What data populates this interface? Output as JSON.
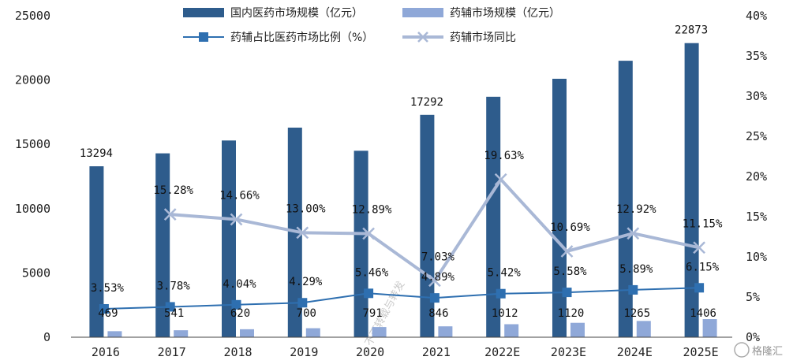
{
  "chart_data": {
    "type": "bar",
    "categories": [
      "2016",
      "2017",
      "2018",
      "2019",
      "2020",
      "2021",
      "2022E",
      "2023E",
      "2024E",
      "2025E"
    ],
    "y_left_lim": [
      0,
      25000
    ],
    "y_left_ticks": [
      "0",
      "5000",
      "10000",
      "15000",
      "20000",
      "25000"
    ],
    "y_right_lim": [
      0,
      40
    ],
    "y_right_ticks": [
      "0%",
      "5%",
      "10%",
      "15%",
      "20%",
      "25%",
      "30%",
      "35%",
      "40%"
    ],
    "grid": false,
    "legend_position": "top",
    "series": [
      {
        "name": "国内医药市场规模（亿元）",
        "type": "bar",
        "axis": "left",
        "color": "#2e5c8c",
        "values": [
          13294,
          14300,
          15300,
          16300,
          14500,
          17292,
          18700,
          20100,
          21500,
          22873
        ],
        "labels": [
          "13294",
          "",
          "",
          "",
          "",
          "17292",
          "",
          "",
          "",
          "22873"
        ]
      },
      {
        "name": "药辅市场规模（亿元）",
        "type": "bar",
        "axis": "left",
        "color": "#8fa8d8",
        "values": [
          469,
          541,
          620,
          700,
          791,
          846,
          1012,
          1120,
          1265,
          1406
        ],
        "labels": [
          "469",
          "541",
          "620",
          "700",
          "791",
          "846",
          "1012",
          "1120",
          "1265",
          "1406"
        ]
      },
      {
        "name": "药辅占比医药市场比例（%）",
        "type": "line",
        "axis": "right",
        "color": "#2e6fb0",
        "values": [
          3.53,
          3.78,
          4.04,
          4.29,
          5.46,
          4.89,
          5.42,
          5.58,
          5.89,
          6.15
        ],
        "labels": [
          "3.53%",
          "3.78%",
          "4.04%",
          "4.29%",
          "5.46%",
          "4.89%",
          "5.42%",
          "5.58%",
          "5.89%",
          "6.15%"
        ]
      },
      {
        "name": "药辅市场同比",
        "type": "line",
        "axis": "right",
        "color": "#a9b8d6",
        "values": [
          null,
          15.28,
          14.66,
          13.0,
          12.89,
          7.03,
          19.63,
          10.69,
          12.92,
          11.15
        ],
        "labels": [
          "",
          "15.28%",
          "14.66%",
          "13.00%",
          "12.89%",
          "7.03%",
          "19.63%",
          "10.69%",
          "12.92%",
          "11.15%"
        ]
      }
    ]
  },
  "watermark": {
    "text": "不可转载与转发",
    "logo_text": "格隆汇"
  }
}
